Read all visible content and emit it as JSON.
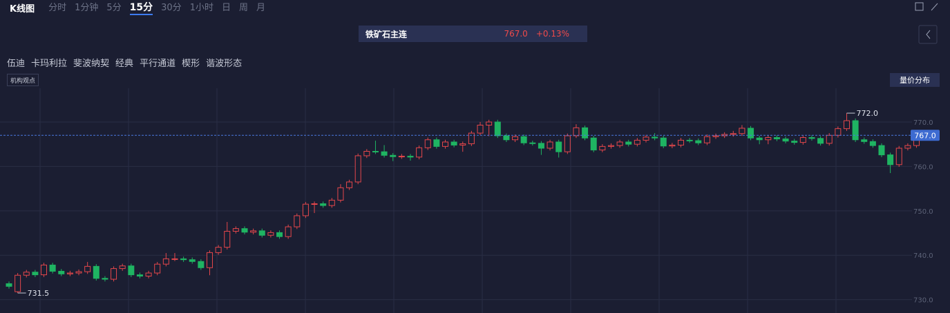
{
  "toolbar": {
    "title": "K线图",
    "periods": [
      "分时",
      "1分钟",
      "5分",
      "15分",
      "30分",
      "1小时",
      "日",
      "周",
      "月"
    ],
    "active": "15分"
  },
  "symbol": {
    "name": "铁矿石主连",
    "price": "767.0",
    "change": "+0.13%"
  },
  "tools": [
    "伍迪",
    "卡玛利拉",
    "斐波纳契",
    "经典",
    "平行通道",
    "楔形",
    "谐波形态"
  ],
  "tag": "机构观点",
  "side_button": "量价分布",
  "chart_data": {
    "type": "candlestick",
    "up_color": "#e5474b",
    "down_color": "#1fb462",
    "open": [
      733.6,
      731.8,
      735.5,
      736.2,
      735.6,
      737.8,
      736.4,
      735.8,
      736,
      736.3,
      737.5,
      734.8,
      734.6,
      737,
      737.6,
      735.6,
      735.3,
      736,
      738,
      739.2,
      739.2,
      739,
      738.6,
      737.2,
      740.6,
      741.8,
      745.4,
      746,
      745.2,
      745.5,
      744.5,
      745.1,
      744.2,
      746.4,
      748.9,
      751.5,
      751.6,
      751.2,
      752.4,
      755.2,
      756.5,
      762.4,
      763.4,
      763.3,
      762.5,
      762.2,
      762.3,
      762.1,
      764.2,
      766,
      764.5,
      765.5,
      764.8,
      765.1,
      767.5,
      769.3,
      770,
      766.9,
      766,
      766.7,
      765.3,
      765.2,
      764.1,
      765.5,
      763.3,
      766.9,
      768.7,
      766.4,
      763.7,
      764.5,
      764.7,
      765.5,
      765,
      765.9,
      766.6,
      766.4,
      764.6,
      764.8,
      765.9,
      765.8,
      765.3,
      766.7,
      766.9,
      767.2,
      767.4,
      768.6,
      766.4,
      766,
      766.5,
      766.2,
      765.7,
      765.4,
      766.5,
      766.3,
      765.2,
      767,
      768.5,
      770.3,
      766,
      765.6,
      764.7,
      762.6,
      760.4,
      764.1,
      764.7
    ],
    "high": [
      734.1,
      736,
      736.7,
      736.7,
      738.3,
      738.3,
      736.9,
      736.5,
      736.8,
      738.5,
      738,
      735.3,
      737.5,
      738.1,
      738.1,
      736.1,
      736.5,
      738.5,
      740.5,
      740.5,
      739.7,
      739.5,
      739.1,
      741.1,
      742.3,
      747.5,
      746.5,
      746.5,
      746,
      746,
      745.6,
      745.6,
      746.9,
      749.4,
      752,
      752.1,
      752.1,
      752.9,
      756,
      757,
      762.9,
      763.9,
      765.8,
      764.8,
      763,
      762.8,
      762.8,
      764.7,
      766.5,
      766.5,
      766,
      766,
      765.6,
      768,
      770,
      770.5,
      770.5,
      767.4,
      767.2,
      767.2,
      765.8,
      765.7,
      766,
      766,
      767.4,
      769.5,
      769.2,
      766.9,
      765,
      765.2,
      766,
      766,
      766.4,
      767.1,
      767.5,
      766.9,
      765.3,
      766.4,
      766.4,
      766.3,
      767.2,
      767.4,
      767.7,
      768,
      769.3,
      769.1,
      766.9,
      767,
      767,
      766.7,
      766.2,
      767,
      767,
      766.8,
      767.5,
      769,
      772,
      770.8,
      766.5,
      766.1,
      765.2,
      763.1,
      764.6,
      765.2,
      767.5
    ],
    "low": [
      732.5,
      731.5,
      735,
      735.1,
      735.1,
      735.9,
      735.3,
      735.3,
      735.5,
      735.8,
      734.3,
      734.1,
      734.1,
      736.5,
      735.1,
      734.8,
      734.8,
      735.5,
      737.5,
      738.7,
      738.5,
      738.1,
      736.7,
      735.5,
      740.1,
      741.3,
      744.9,
      744.7,
      744.7,
      744,
      744,
      743.7,
      743.7,
      745.9,
      748.4,
      749.5,
      750.7,
      750.7,
      751.9,
      754.7,
      756,
      761.9,
      762.8,
      762,
      761.2,
      761.7,
      761.3,
      761.6,
      763.7,
      764,
      764,
      764.3,
      763.3,
      764.6,
      767,
      766.8,
      766.4,
      765.5,
      765.5,
      764.8,
      764.7,
      762.6,
      763.6,
      762,
      762.8,
      766.4,
      765.9,
      763.2,
      763.2,
      764,
      764.2,
      764.5,
      764.5,
      765.4,
      765.9,
      764.1,
      764.1,
      764.3,
      765.3,
      764.8,
      764.8,
      766.2,
      766.4,
      766.7,
      766.9,
      765.9,
      765,
      765,
      765.7,
      765.2,
      764.9,
      764.9,
      765.8,
      764.7,
      764.7,
      766.5,
      768,
      765.5,
      765.1,
      764.2,
      762.1,
      758.5,
      759.9,
      763.6,
      764.2
    ],
    "close": [
      733,
      735.5,
      736.2,
      735.6,
      737.8,
      736.4,
      735.8,
      736,
      736.3,
      737.5,
      734.8,
      734.6,
      737,
      737.6,
      735.6,
      735.3,
      736,
      738,
      739.2,
      739.2,
      739,
      738.6,
      737.2,
      740.6,
      741.8,
      745.4,
      746,
      745.2,
      745.5,
      744.5,
      745.1,
      744.2,
      746.4,
      748.9,
      751.5,
      751.6,
      751.2,
      752.4,
      755.2,
      756.5,
      762.4,
      763.4,
      763.3,
      762.5,
      762.2,
      762.3,
      762.1,
      764.2,
      766,
      764.5,
      765.5,
      764.8,
      765.1,
      767.5,
      769.3,
      770,
      766.9,
      766,
      766.7,
      765.3,
      765.2,
      764.1,
      765.5,
      763.3,
      766.9,
      768.7,
      766.4,
      763.7,
      764.5,
      764.7,
      765.5,
      765,
      765.9,
      766.6,
      766.4,
      764.6,
      764.8,
      765.9,
      765.8,
      765.3,
      766.7,
      766.9,
      767.2,
      767.4,
      768.6,
      766.4,
      766,
      766.5,
      766.2,
      765.7,
      765.4,
      766.5,
      766.3,
      765.2,
      767,
      768.5,
      770.3,
      766,
      765.6,
      764.7,
      762.6,
      760.4,
      764.1,
      764.7,
      767
    ],
    "ylim": [
      727,
      777.6
    ],
    "yticks": [
      {
        "value": 730,
        "label": "730.0"
      },
      {
        "value": 740,
        "label": "740.0"
      },
      {
        "value": 750,
        "label": "750.0"
      },
      {
        "value": 760,
        "label": "760.0"
      },
      {
        "value": 770,
        "label": "770.0"
      }
    ],
    "grid": true,
    "current_price": {
      "value": 767,
      "label": "767.0"
    },
    "annotations": [
      {
        "value": 772,
        "label": "772.0"
      },
      {
        "value": 731.5,
        "label": "731.5"
      }
    ]
  }
}
